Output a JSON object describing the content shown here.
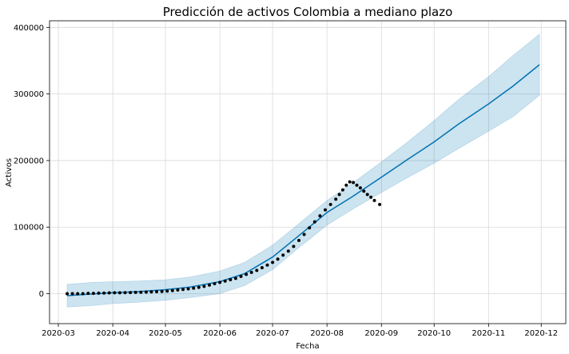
{
  "chart_data": {
    "type": "line",
    "title": "Predicción de activos Colombia a mediano plazo",
    "xlabel": "Fecha",
    "ylabel": "Activos",
    "xlim": [
      "2020-02-25",
      "2020-12-15"
    ],
    "ylim": [
      -45000,
      410000
    ],
    "x_ticks": [
      "2020-03",
      "2020-04",
      "2020-05",
      "2020-06",
      "2020-07",
      "2020-08",
      "2020-09",
      "2020-10",
      "2020-11",
      "2020-12"
    ],
    "y_ticks": [
      0,
      100000,
      200000,
      300000,
      400000
    ],
    "grid": true,
    "colors": {
      "forecast": "#0072B2",
      "interval": "#0072B2",
      "observed": "#000000",
      "grid": "#d9d9d9"
    },
    "series": [
      {
        "kind": "forecast",
        "dates": [
          "2020-03-06",
          "2020-03-20",
          "2020-04-01",
          "2020-04-15",
          "2020-05-01",
          "2020-05-15",
          "2020-06-01",
          "2020-06-15",
          "2020-07-01",
          "2020-07-15",
          "2020-08-01",
          "2020-08-15",
          "2020-09-01",
          "2020-09-15",
          "2020-10-01",
          "2020-10-15",
          "2020-11-01",
          "2020-11-15",
          "2020-11-30"
        ],
        "values": [
          -3000,
          -500,
          1500,
          3000,
          6000,
          10000,
          18000,
          30000,
          55000,
          85000,
          122000,
          145000,
          175000,
          200000,
          228000,
          255000,
          285000,
          312000,
          344000
        ],
        "lower": [
          -20000,
          -18000,
          -15000,
          -13000,
          -10000,
          -6000,
          0,
          12000,
          36000,
          67000,
          103000,
          126000,
          152000,
          173000,
          196000,
          218000,
          244000,
          266000,
          298000
        ],
        "upper": [
          14000,
          17000,
          18000,
          19000,
          21000,
          25000,
          34000,
          47000,
          73000,
          103000,
          140000,
          165000,
          198000,
          226000,
          260000,
          292000,
          326000,
          358000,
          390000
        ]
      },
      {
        "kind": "observed",
        "dates": [
          "2020-03-06",
          "2020-03-09",
          "2020-03-12",
          "2020-03-15",
          "2020-03-18",
          "2020-03-21",
          "2020-03-24",
          "2020-03-27",
          "2020-03-30",
          "2020-04-02",
          "2020-04-05",
          "2020-04-08",
          "2020-04-11",
          "2020-04-14",
          "2020-04-17",
          "2020-04-20",
          "2020-04-23",
          "2020-04-26",
          "2020-04-29",
          "2020-05-02",
          "2020-05-05",
          "2020-05-08",
          "2020-05-11",
          "2020-05-14",
          "2020-05-17",
          "2020-05-20",
          "2020-05-23",
          "2020-05-26",
          "2020-05-29",
          "2020-06-01",
          "2020-06-04",
          "2020-06-07",
          "2020-06-10",
          "2020-06-13",
          "2020-06-16",
          "2020-06-19",
          "2020-06-22",
          "2020-06-25",
          "2020-06-28",
          "2020-07-01",
          "2020-07-04",
          "2020-07-07",
          "2020-07-10",
          "2020-07-13",
          "2020-07-16",
          "2020-07-19",
          "2020-07-22",
          "2020-07-25",
          "2020-07-28",
          "2020-07-31",
          "2020-08-03",
          "2020-08-06",
          "2020-08-08",
          "2020-08-10",
          "2020-08-12",
          "2020-08-14",
          "2020-08-16",
          "2020-08-18",
          "2020-08-20",
          "2020-08-22",
          "2020-08-24",
          "2020-08-26",
          "2020-08-28",
          "2020-08-31"
        ],
        "values": [
          0,
          0,
          0,
          0,
          500,
          500,
          800,
          1000,
          1200,
          1300,
          1400,
          1500,
          1700,
          1900,
          2100,
          2400,
          2700,
          3000,
          3400,
          4000,
          4700,
          5500,
          6300,
          7200,
          8300,
          9500,
          11000,
          13000,
          15000,
          17000,
          19000,
          21000,
          23000,
          26000,
          29000,
          32000,
          35000,
          39000,
          43000,
          47000,
          52000,
          58000,
          64000,
          71000,
          80000,
          89000,
          99000,
          108000,
          117000,
          126000,
          134000,
          142000,
          149000,
          156000,
          163000,
          168000,
          167000,
          163000,
          159000,
          154000,
          149000,
          145000,
          140000,
          134000
        ]
      }
    ]
  }
}
